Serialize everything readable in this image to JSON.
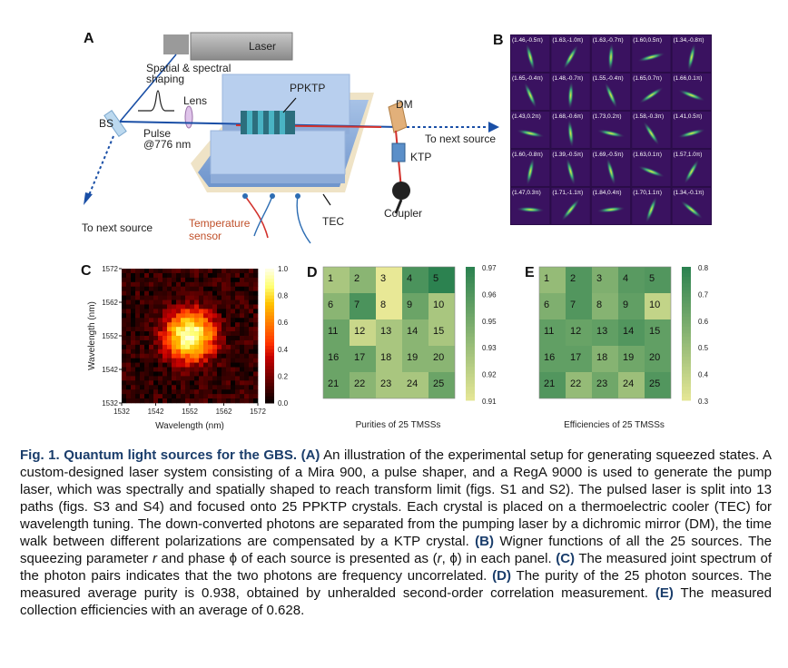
{
  "panel_labels": {
    "a": "A",
    "b": "B",
    "c": "C",
    "d": "D",
    "e": "E"
  },
  "panel_a": {
    "laser": "Laser",
    "shaping": "Spatial & spectral shaping",
    "shaping_line1": "Spatial & spectral",
    "shaping_line2": "shaping",
    "lens": "Lens",
    "bs": "BS",
    "pulse_line1": "Pulse",
    "pulse_line2": "@776 nm",
    "ppktp": "PPKTP",
    "dm": "DM",
    "next_source_right": "To next source",
    "next_source_left": "To next source",
    "ktp": "KTP",
    "tec": "TEC",
    "coupler": "Coupler",
    "temp_line1": "Temperature",
    "temp_line2": "sensor"
  },
  "panel_b": {
    "grid": [
      [
        "(1.46,-0.5π)",
        "(1.63,-1.0π)",
        "(1.63,-0.7π)",
        "(1.60,0.5π)",
        "(1.34,-0.8π)"
      ],
      [
        "(1.65,-0.4π)",
        "(1.48,-0.7π)",
        "(1.55,-0.4π)",
        "(1.65,0.7π)",
        "(1.66,0.1π)"
      ],
      [
        "(1.43,0.2π)",
        "(1.68,-0.6π)",
        "(1.73,0.2π)",
        "(1.58,-0.3π)",
        "(1.41,0.5π)"
      ],
      [
        "(1.60,-0.8π)",
        "(1.39,-0.5π)",
        "(1.69,-0.5π)",
        "(1.63,0.1π)",
        "(1.57,1.0π)"
      ],
      [
        "(1.47,0.3π)",
        "(1.71,-1.1π)",
        "(1.84,0.4π)",
        "(1.70,1.1π)",
        "(1.34,-0.1π)"
      ]
    ]
  },
  "chart_data": [
    {
      "type": "heatmap",
      "panel": "C",
      "title": "",
      "xlabel": "Wavelength (nm)",
      "ylabel": "Wavelength (nm)",
      "xticks": [
        "1532",
        "1542",
        "1552",
        "1562",
        "1572"
      ],
      "yticks": [
        "1572",
        "1562",
        "1552",
        "1542",
        "1532"
      ],
      "xlim": [
        1532,
        1572
      ],
      "ylim": [
        1532,
        1572
      ],
      "peak": {
        "x": 1552,
        "y": 1552
      },
      "colorbar_ticks": [
        "1.0",
        "0.8",
        "0.6",
        "0.4",
        "0.2",
        "0.0"
      ],
      "colorbar_range": [
        0,
        1
      ]
    },
    {
      "type": "heatmap",
      "panel": "D",
      "xlabel": "Purities of 25 TMSSs",
      "labels": [
        [
          "1",
          "2",
          "3",
          "4",
          "5"
        ],
        [
          "6",
          "7",
          "8",
          "9",
          "10"
        ],
        [
          "11",
          "12",
          "13",
          "14",
          "15"
        ],
        [
          "16",
          "17",
          "18",
          "19",
          "20"
        ],
        [
          "21",
          "22",
          "23",
          "24",
          "25"
        ]
      ],
      "values": [
        [
          0.93,
          0.94,
          0.91,
          0.96,
          0.97
        ],
        [
          0.94,
          0.96,
          0.91,
          0.95,
          0.93
        ],
        [
          0.95,
          0.92,
          0.93,
          0.94,
          0.93
        ],
        [
          0.95,
          0.95,
          0.93,
          0.94,
          0.94
        ],
        [
          0.95,
          0.94,
          0.93,
          0.93,
          0.95
        ]
      ],
      "colorbar_ticks": [
        "0.97",
        "0.96",
        "0.95",
        "0.93",
        "0.92",
        "0.91"
      ],
      "colorbar_range": [
        0.91,
        0.97
      ]
    },
    {
      "type": "heatmap",
      "panel": "E",
      "xlabel": "Efficiencies of 25 TMSSs",
      "labels": [
        [
          "1",
          "2",
          "3",
          "4",
          "5"
        ],
        [
          "6",
          "7",
          "8",
          "9",
          "10"
        ],
        [
          "11",
          "12",
          "13",
          "14",
          "15"
        ],
        [
          "16",
          "17",
          "18",
          "19",
          "20"
        ],
        [
          "21",
          "22",
          "23",
          "24",
          "25"
        ]
      ],
      "values": [
        [
          0.52,
          0.7,
          0.58,
          0.68,
          0.7
        ],
        [
          0.58,
          0.7,
          0.56,
          0.66,
          0.4
        ],
        [
          0.66,
          0.64,
          0.66,
          0.7,
          0.66
        ],
        [
          0.66,
          0.66,
          0.56,
          0.62,
          0.66
        ],
        [
          0.7,
          0.52,
          0.62,
          0.5,
          0.7
        ]
      ],
      "colorbar_ticks": [
        "0.8",
        "0.7",
        "0.6",
        "0.5",
        "0.4",
        "0.3"
      ],
      "colorbar_range": [
        0.3,
        0.8
      ]
    }
  ],
  "caption": {
    "fig": "Fig. 1.",
    "title": "Quantum light sources for the GBS.",
    "l1a": "(A)",
    "l1b": " An illustration of the experimental setup for generating squeezed states. A custom-designed laser system consisting of a Mira 900, a pulse shaper, and a RegA 9000 is used to generate the pump laser, which was spectrally and spatially shaped to reach transform limit (figs. S1 and S2). The pulsed laser is split into 13 paths (figs. S3 and S4) and focused onto 25 PPKTP crystals. Each crystal is placed on a thermoelectric cooler (TEC) for wavelength tuning. The down-converted photons are separated from the pumping laser by a dichromic mirror (DM), the time walk between different polarizations are compensated by a KTP crystal. ",
    "l2a": "(B)",
    "l2b": " Wigner functions of all the 25 sources. The squeezing parameter ",
    "r": "r",
    "l2c": " and phase ",
    "phi": "ϕ",
    "l2d": " of each source is presented as (",
    "rr": "r",
    "l2e": ", ",
    "pp": "ϕ",
    "l2f": ") in each panel. ",
    "l3a": "(C)",
    "l3b": " The measured joint spectrum of the photon pairs indicates that the two photons are frequency uncorrelated. ",
    "l4a": "(D)",
    "l4b": " The purity of the 25 photon sources. The measured average purity is 0.938, obtained by unheralded second-order correlation measurement. ",
    "l5a": "(E)",
    "l5b": " The measured collection efficiencies with an average of 0.628."
  }
}
